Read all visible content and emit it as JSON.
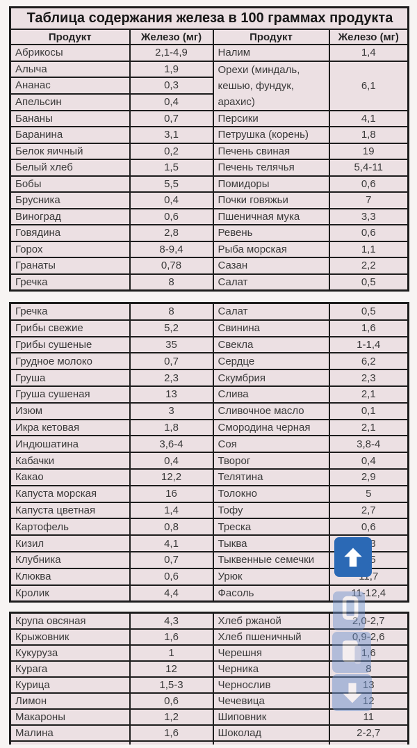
{
  "title": "Таблица содержания железа в 100 граммах продукта",
  "columns": [
    "Продукт",
    "Железо (мг)",
    "Продукт",
    "Железо (мг)"
  ],
  "colors": {
    "cell_bg": "#ece0e3",
    "border": "#1d1d1d",
    "accent_blue": "#2b69b5",
    "text": "#3a3a3a"
  },
  "sections": [
    {
      "rows": [
        [
          {
            "t": "Абрикосы"
          },
          {
            "t": "2,1-4,9",
            "k": "v"
          },
          {
            "t": "Налим"
          },
          {
            "t": "1,4",
            "k": "v"
          }
        ],
        [
          {
            "t": "Алыча"
          },
          {
            "t": "1,9",
            "k": "v"
          },
          {
            "t": "Орехи (миндаль,\nкешью, фундук,\nарахис)",
            "rs": 3,
            "multi": true
          },
          {
            "t": "6,1",
            "k": "v",
            "rs": 3
          }
        ],
        [
          {
            "t": "Ананас"
          },
          {
            "t": "0,3",
            "k": "v"
          }
        ],
        [
          {
            "t": "Апельсин"
          },
          {
            "t": "0,4",
            "k": "v"
          }
        ],
        [
          {
            "t": "Бананы"
          },
          {
            "t": "0,7",
            "k": "v"
          },
          {
            "t": "Персики"
          },
          {
            "t": "4,1",
            "k": "v"
          }
        ],
        [
          {
            "t": "Баранина"
          },
          {
            "t": "3,1",
            "k": "v"
          },
          {
            "t": "Петрушка (корень)"
          },
          {
            "t": "1,8",
            "k": "v"
          }
        ],
        [
          {
            "t": "Белок яичный"
          },
          {
            "t": "0,2",
            "k": "v"
          },
          {
            "t": "Печень свиная"
          },
          {
            "t": "19",
            "k": "v"
          }
        ],
        [
          {
            "t": "Белый хлеб"
          },
          {
            "t": "1,5",
            "k": "v"
          },
          {
            "t": "Печень телячья"
          },
          {
            "t": "5,4-11",
            "k": "v"
          }
        ],
        [
          {
            "t": "Бобы"
          },
          {
            "t": "5,5",
            "k": "v"
          },
          {
            "t": "Помидоры"
          },
          {
            "t": "0,6",
            "k": "v"
          }
        ],
        [
          {
            "t": "Брусника"
          },
          {
            "t": "0,4",
            "k": "v"
          },
          {
            "t": "Почки говяжьи"
          },
          {
            "t": "7",
            "k": "v"
          }
        ],
        [
          {
            "t": "Виноград"
          },
          {
            "t": "0,6",
            "k": "v"
          },
          {
            "t": "Пшеничная мука"
          },
          {
            "t": "3,3",
            "k": "v"
          }
        ],
        [
          {
            "t": "Говядина"
          },
          {
            "t": "2,8",
            "k": "v"
          },
          {
            "t": "Ревень"
          },
          {
            "t": "0,6",
            "k": "v"
          }
        ],
        [
          {
            "t": "Горох"
          },
          {
            "t": "8-9,4",
            "k": "v"
          },
          {
            "t": "Рыба морская"
          },
          {
            "t": "1,1",
            "k": "v"
          }
        ],
        [
          {
            "t": "Гранаты"
          },
          {
            "t": "0,78",
            "k": "v"
          },
          {
            "t": "Сазан"
          },
          {
            "t": "2,2",
            "k": "v"
          }
        ],
        [
          {
            "t": "Гречка"
          },
          {
            "t": "8",
            "k": "v"
          },
          {
            "t": "Салат"
          },
          {
            "t": "0,5",
            "k": "v"
          }
        ]
      ]
    },
    {
      "rows": [
        [
          {
            "t": "Гречка"
          },
          {
            "t": "8",
            "k": "v"
          },
          {
            "t": "Салат"
          },
          {
            "t": "0,5",
            "k": "v"
          }
        ],
        [
          {
            "t": "Грибы свежие"
          },
          {
            "t": "5,2",
            "k": "v"
          },
          {
            "t": "Свинина"
          },
          {
            "t": "1,6",
            "k": "v"
          }
        ],
        [
          {
            "t": "Грибы сушеные"
          },
          {
            "t": "35",
            "k": "v"
          },
          {
            "t": "Свекла"
          },
          {
            "t": "1-1,4",
            "k": "v"
          }
        ],
        [
          {
            "t": "Грудное молоко"
          },
          {
            "t": "0,7",
            "k": "v"
          },
          {
            "t": "Сердце"
          },
          {
            "t": "6,2",
            "k": "v"
          }
        ],
        [
          {
            "t": "Груша"
          },
          {
            "t": "2,3",
            "k": "v"
          },
          {
            "t": "Скумбрия"
          },
          {
            "t": "2,3",
            "k": "v"
          }
        ],
        [
          {
            "t": "Груша сушеная"
          },
          {
            "t": "13",
            "k": "v"
          },
          {
            "t": "Слива"
          },
          {
            "t": "2,1",
            "k": "v"
          }
        ],
        [
          {
            "t": "Изюм"
          },
          {
            "t": "3",
            "k": "v"
          },
          {
            "t": "Сливочное масло"
          },
          {
            "t": "0,1",
            "k": "v"
          }
        ],
        [
          {
            "t": "Икра кетовая"
          },
          {
            "t": "1,8",
            "k": "v"
          },
          {
            "t": "Смородина черная"
          },
          {
            "t": "2,1",
            "k": "v"
          }
        ],
        [
          {
            "t": "Индюшатина"
          },
          {
            "t": "3,6-4",
            "k": "v"
          },
          {
            "t": "Соя"
          },
          {
            "t": "3,8-4",
            "k": "v"
          }
        ],
        [
          {
            "t": "Кабачки"
          },
          {
            "t": "0,4",
            "k": "v"
          },
          {
            "t": "Творог"
          },
          {
            "t": "0,4",
            "k": "v"
          }
        ],
        [
          {
            "t": "Какао"
          },
          {
            "t": "12,2",
            "k": "v"
          },
          {
            "t": "Телятина"
          },
          {
            "t": "2,9",
            "k": "v"
          }
        ],
        [
          {
            "t": "Капуста морская"
          },
          {
            "t": "16",
            "k": "v"
          },
          {
            "t": "Толокно"
          },
          {
            "t": "5",
            "k": "v"
          }
        ],
        [
          {
            "t": "Капуста цветная"
          },
          {
            "t": "1,4",
            "k": "v"
          },
          {
            "t": "Тофу"
          },
          {
            "t": "2,7",
            "k": "v"
          }
        ],
        [
          {
            "t": "Картофель"
          },
          {
            "t": "0,8",
            "k": "v"
          },
          {
            "t": "Треска"
          },
          {
            "t": "0,6",
            "k": "v"
          }
        ],
        [
          {
            "t": "Кизил"
          },
          {
            "t": "4,1",
            "k": "v"
          },
          {
            "t": "Тыква"
          },
          {
            "t": "0,3",
            "k": "v"
          }
        ],
        [
          {
            "t": "Клубника"
          },
          {
            "t": "0,7",
            "k": "v"
          },
          {
            "t": "Тыквенные семечки"
          },
          {
            "t": "8,5",
            "k": "v"
          }
        ],
        [
          {
            "t": "Клюква"
          },
          {
            "t": "0,6",
            "k": "v"
          },
          {
            "t": "Урюк"
          },
          {
            "t": "11,7",
            "k": "v"
          }
        ],
        [
          {
            "t": "Кролик"
          },
          {
            "t": "4,4",
            "k": "v"
          },
          {
            "t": "Фасоль"
          },
          {
            "t": "11-12,4",
            "k": "v"
          }
        ]
      ]
    },
    {
      "rows": [
        [
          {
            "t": "Крупа овсяная"
          },
          {
            "t": "4,3",
            "k": "v"
          },
          {
            "t": "Хлеб ржаной"
          },
          {
            "t": "2,0-2,7",
            "k": "v"
          }
        ],
        [
          {
            "t": "Крыжовник"
          },
          {
            "t": "1,6",
            "k": "v"
          },
          {
            "t": "Хлеб пшеничный"
          },
          {
            "t": "0,9-2,6",
            "k": "v"
          }
        ],
        [
          {
            "t": "Кукуруза"
          },
          {
            "t": "1",
            "k": "v"
          },
          {
            "t": "Черешня"
          },
          {
            "t": "1,6",
            "k": "v"
          }
        ],
        [
          {
            "t": "Курага"
          },
          {
            "t": "12",
            "k": "v"
          },
          {
            "t": "Черника"
          },
          {
            "t": "8",
            "k": "v"
          }
        ],
        [
          {
            "t": "Курица"
          },
          {
            "t": "1,5-3",
            "k": "v"
          },
          {
            "t": "Чернослив"
          },
          {
            "t": "13",
            "k": "v"
          }
        ],
        [
          {
            "t": "Лимон"
          },
          {
            "t": "0,6",
            "k": "v"
          },
          {
            "t": "Чечевица"
          },
          {
            "t": "12",
            "k": "v"
          }
        ],
        [
          {
            "t": "Макароны"
          },
          {
            "t": "1,2",
            "k": "v"
          },
          {
            "t": "Шиповник"
          },
          {
            "t": "11",
            "k": "v"
          }
        ],
        [
          {
            "t": "Малина"
          },
          {
            "t": "1,6",
            "k": "v"
          },
          {
            "t": "Шоколад"
          },
          {
            "t": "2-2,7",
            "k": "v"
          }
        ],
        [
          {
            "t": "",
            "partial": true
          },
          {
            "t": "",
            "k": "v",
            "partial": true
          },
          {
            "t": "",
            "partial": true
          },
          {
            "t": "",
            "k": "v",
            "partial": true
          }
        ]
      ]
    }
  ],
  "overlay": {
    "buttons": [
      {
        "name": "scroll-up-button",
        "icon": "arrow-up-icon",
        "style": "solid"
      },
      {
        "name": "frame-button",
        "icon": "frame-icon",
        "style": "faded"
      },
      {
        "name": "document-button",
        "icon": "document-icon",
        "style": "faded"
      },
      {
        "name": "scroll-down-button",
        "icon": "arrow-down-icon",
        "style": "faded"
      }
    ]
  }
}
